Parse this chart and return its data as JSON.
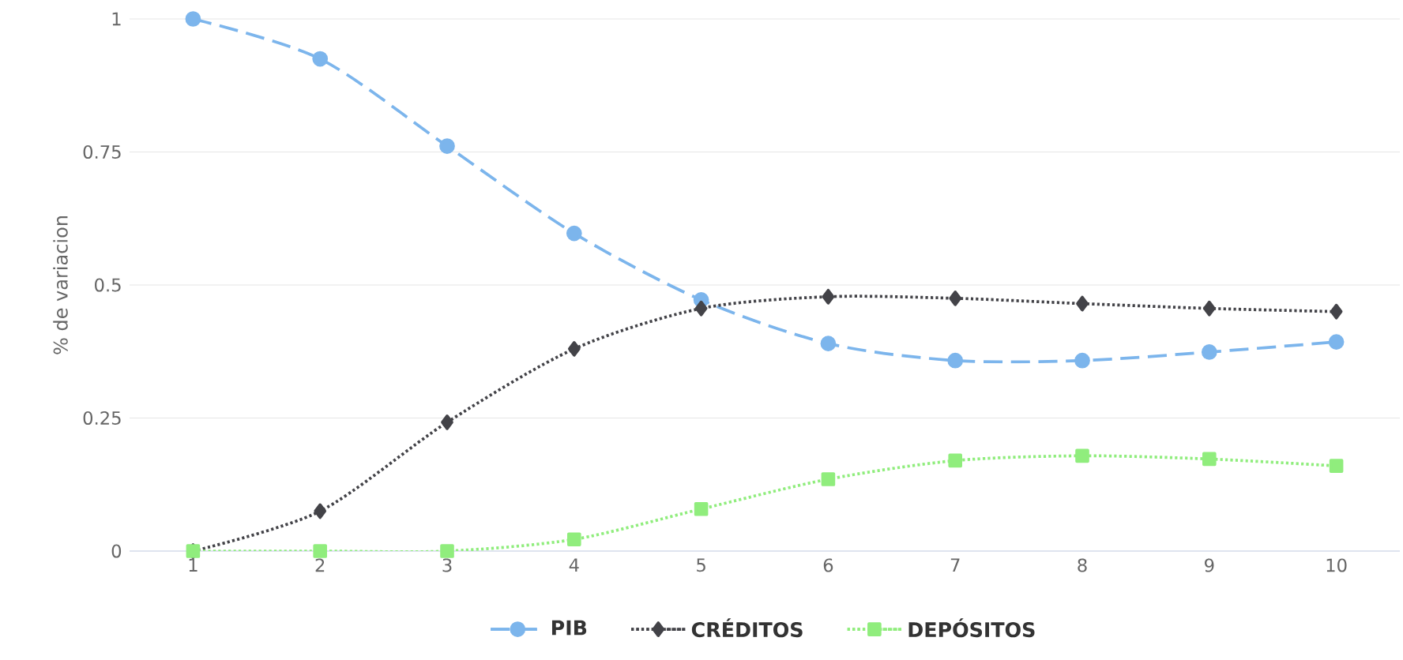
{
  "chart_data": {
    "type": "line",
    "ylabel": "% de variacion",
    "categories": [
      "1",
      "2",
      "3",
      "4",
      "5",
      "6",
      "7",
      "8",
      "9",
      "10"
    ],
    "series": [
      {
        "name": "PIB",
        "color": "#7cb5ec",
        "marker": "circle",
        "line_style": "dashed",
        "values": [
          1.0,
          0.925,
          0.761,
          0.597,
          0.472,
          0.39,
          0.358,
          0.358,
          0.374,
          0.393
        ]
      },
      {
        "name": "CRÉDITOS",
        "color": "#434348",
        "marker": "diamond",
        "line_style": "dotted",
        "values": [
          0.0,
          0.075,
          0.242,
          0.38,
          0.456,
          0.478,
          0.475,
          0.465,
          0.456,
          0.45
        ]
      },
      {
        "name": "DEPÓSITOS",
        "color": "#90ed7d",
        "marker": "square",
        "line_style": "dotted",
        "values": [
          0.0,
          0.0,
          0.0,
          0.022,
          0.079,
          0.135,
          0.17,
          0.179,
          0.173,
          0.16
        ]
      }
    ],
    "ylim": [
      0,
      1
    ],
    "yticks": [
      0,
      0.25,
      0.5,
      0.75,
      1
    ],
    "grid": "y",
    "legend": "bottom"
  }
}
